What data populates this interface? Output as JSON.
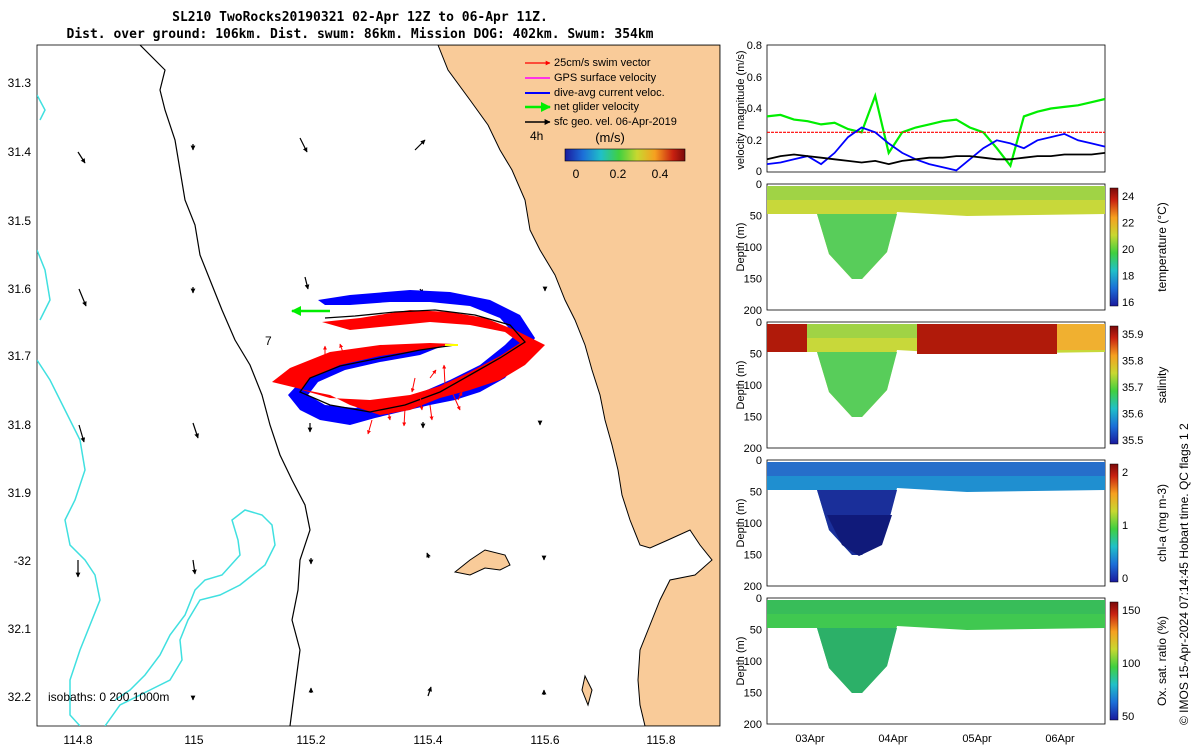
{
  "header": {
    "title_line1": "SL210 TwoRocks20190321 02-Apr 12Z to 06-Apr 11Z.",
    "title_line2": "Dist. over ground: 106km. Dist. swum: 86km. Mission DOG: 402km. Swum: 354km"
  },
  "map": {
    "lon_ticks": [
      "114.8",
      "115",
      "115.2",
      "115.4",
      "115.6",
      "115.8"
    ],
    "lat_ticks": [
      "31.3",
      "31.4",
      "31.5",
      "31.6",
      "31.7",
      "31.8",
      "31.9",
      "-32",
      "32.1",
      "32.2"
    ],
    "isobaths_label": "isobaths: 0   200  1000m",
    "label_4h": "4h",
    "label_7": "7",
    "colors": {
      "land": "#f9cb99",
      "ocean": "#ffffff",
      "isobath_1000": "#40e0e0",
      "isobath_200": "#000000",
      "coast": "#000000"
    },
    "legend": {
      "items": [
        {
          "label": "25cm/s swim vector",
          "color": "#ff0000"
        },
        {
          "label": "GPS surface velocity",
          "color": "#ff00ff"
        },
        {
          "label": "dive-avg current veloc.",
          "color": "#0000ff"
        },
        {
          "label": "net glider velocity",
          "color": "#00ff00"
        },
        {
          "label": "sfc geo. vel. 06-Apr-2019",
          "color": "#000000"
        }
      ],
      "colorbar_title": "(m/s)",
      "colorbar_ticks": [
        "0",
        "0.2",
        "0.4"
      ]
    }
  },
  "chart_data": [
    {
      "type": "line",
      "ylabel": "velocity magnitude (m/s)",
      "ylim": [
        0,
        0.8
      ],
      "yticks": [
        "0",
        "0.2",
        "0.4",
        "0.6",
        "0.8"
      ],
      "series": [
        {
          "name": "",
          "color": "#00ee00",
          "values": [
            0.35,
            0.36,
            0.33,
            0.32,
            0.3,
            0.31,
            0.27,
            0.25,
            0.48,
            0.12,
            0.25,
            0.28,
            0.3,
            0.32,
            0.33,
            0.28,
            0.25,
            0.15,
            0.04,
            0.35,
            0.38,
            0.4,
            0.41,
            0.42,
            0.44,
            0.46
          ]
        },
        {
          "name": "",
          "color": "#ff0000",
          "values": [
            0.25,
            0.25,
            0.25,
            0.25,
            0.25,
            0.25,
            0.25,
            0.25,
            0.25,
            0.25,
            0.25,
            0.25,
            0.25,
            0.25,
            0.25,
            0.25,
            0.25,
            0.25,
            0.25,
            0.25,
            0.25,
            0.25,
            0.25,
            0.25,
            0.25,
            0.25
          ]
        },
        {
          "name": "",
          "color": "#0000ff",
          "values": [
            0.05,
            0.06,
            0.08,
            0.1,
            0.05,
            0.12,
            0.22,
            0.28,
            0.25,
            0.18,
            0.12,
            0.08,
            0.05,
            0.03,
            0.01,
            0.08,
            0.15,
            0.2,
            0.18,
            0.15,
            0.2,
            0.22,
            0.24,
            0.2,
            0.18,
            0.16
          ]
        },
        {
          "name": "",
          "color": "#000000",
          "values": [
            0.08,
            0.1,
            0.11,
            0.1,
            0.09,
            0.08,
            0.07,
            0.06,
            0.07,
            0.05,
            0.07,
            0.08,
            0.09,
            0.09,
            0.1,
            0.1,
            0.09,
            0.08,
            0.08,
            0.09,
            0.1,
            0.1,
            0.11,
            0.11,
            0.11,
            0.12
          ]
        }
      ]
    },
    {
      "type": "heatmap",
      "ylabel": "Depth (m)",
      "yticks": [
        "0",
        "50",
        "100",
        "150",
        "200"
      ],
      "colorbar_label": "temperature (°C)",
      "colorbar_ticks": [
        "16",
        "18",
        "20",
        "22",
        "24"
      ],
      "colors": [
        "#c8d83a",
        "#8ed14a",
        "#58cd5a",
        "#3ecb5e"
      ]
    },
    {
      "type": "heatmap",
      "ylabel": "Depth (m)",
      "yticks": [
        "0",
        "50",
        "100",
        "150",
        "200"
      ],
      "colorbar_label": "salinity",
      "colorbar_ticks": [
        "35.5",
        "35.6",
        "35.7",
        "35.8",
        "35.9"
      ],
      "colors": [
        "#c8d83a",
        "#8ed14a",
        "#58cd5a",
        "#3ecb5e"
      ]
    },
    {
      "type": "heatmap",
      "ylabel": "Depth (m)",
      "yticks": [
        "0",
        "50",
        "100",
        "150",
        "200"
      ],
      "colorbar_label": "chl-a (mg m-3)",
      "colorbar_ticks": [
        "0",
        "1",
        "2"
      ],
      "colors": [
        "#1f8fd0",
        "#2a5fc8",
        "#1a2f9a",
        "#101a7a"
      ]
    },
    {
      "type": "heatmap",
      "ylabel": "Depth (m)",
      "yticks": [
        "0",
        "50",
        "100",
        "150",
        "200"
      ],
      "colorbar_label": "Ox. sat. ratio (%)",
      "colorbar_ticks": [
        "50",
        "100",
        "150"
      ],
      "colors": [
        "#40c850",
        "#34b85c",
        "#2cb068",
        "#34c050"
      ]
    }
  ],
  "xaxis": {
    "ticks": [
      "03Apr",
      "04Apr",
      "05Apr",
      "06Apr"
    ]
  },
  "footer": {
    "credit": "© IMOS 15-Apr-2024 07:14:45 Hobart time. QC flags 1  2"
  }
}
